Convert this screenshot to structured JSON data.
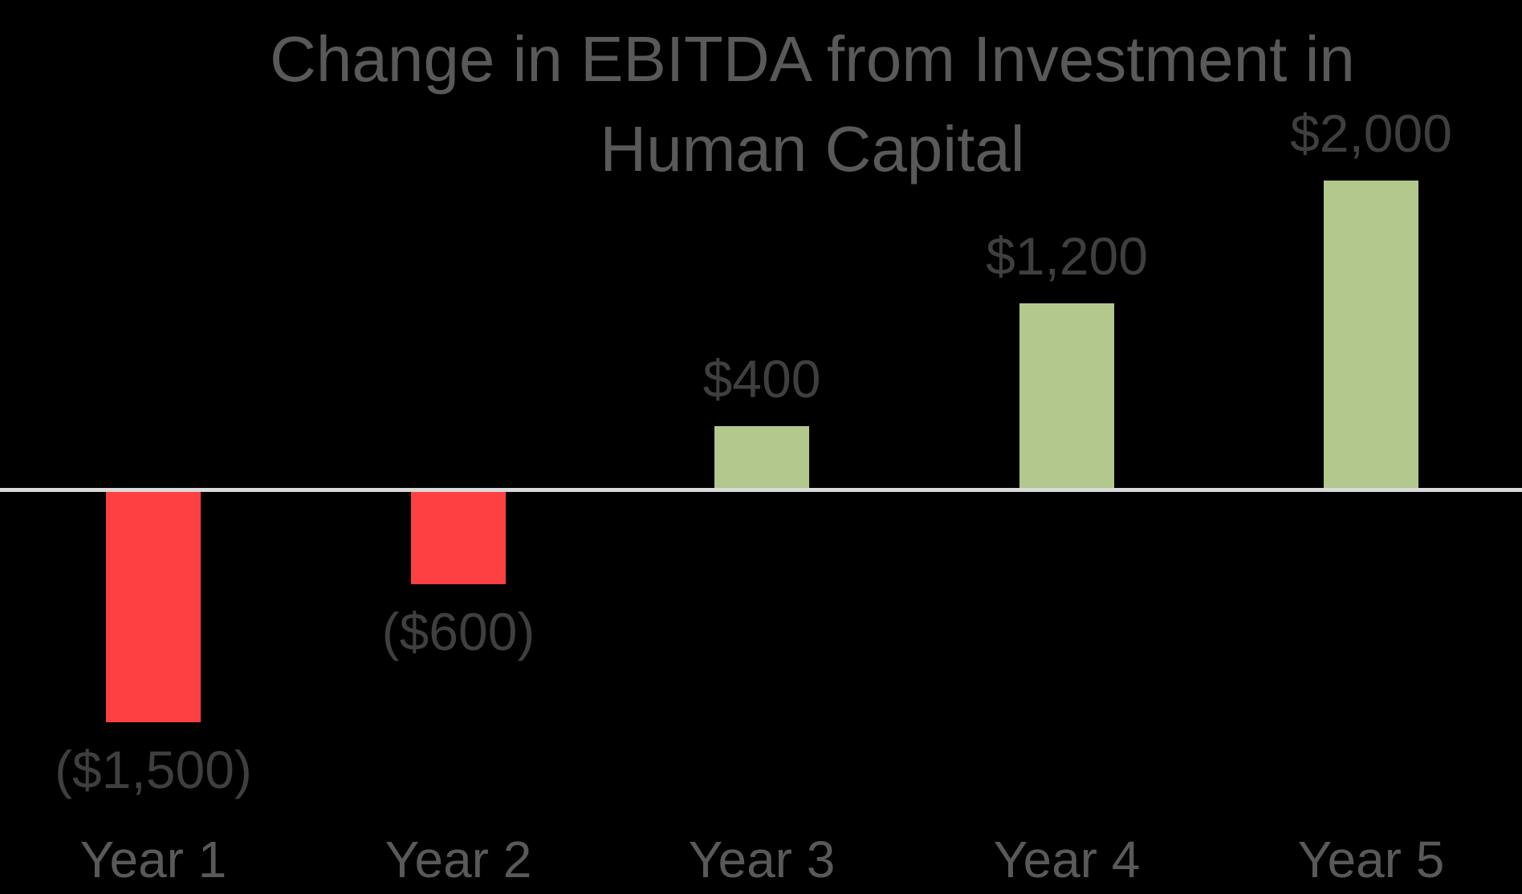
{
  "chart_data": {
    "type": "bar",
    "title": "Change in EBITDA from Investment in Human Capital",
    "categories": [
      "Year 1",
      "Year 2",
      "Year 3",
      "Year 4",
      "Year 5"
    ],
    "values": [
      -1500,
      -600,
      400,
      1200,
      2000
    ],
    "labels": [
      "($1,500)",
      "($600)",
      "$400",
      "$1,200",
      "$2,000"
    ],
    "series": [
      {
        "name": "Change in EBITDA",
        "values": [
          -1500,
          -600,
          400,
          1200,
          2000
        ]
      }
    ],
    "xlabel": "",
    "ylabel": "",
    "ylim": [
      -1600,
      2100
    ],
    "grid": false,
    "legend": "none",
    "colors": {
      "positive_bar": "#B3C88D",
      "negative_bar": "#FF4042",
      "axis_line": "#D9D9D9",
      "title_text": "#595959",
      "category_text": "#595959",
      "value_text": "#3F3F3F",
      "background": "#000000"
    }
  }
}
